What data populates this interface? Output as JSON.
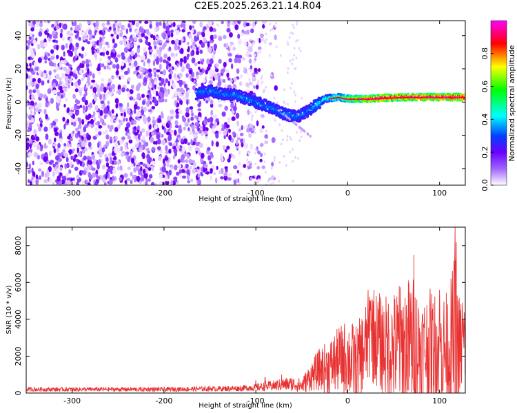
{
  "title": "C2E5.2025.263.21.14.R04",
  "chart_data": [
    {
      "type": "heatmap",
      "name": "spectrogram",
      "xlabel": "Height of straight line (km)",
      "ylabel": "Frequency (Hz)",
      "xlim": [
        -350,
        128
      ],
      "ylim": [
        -50,
        49
      ],
      "xticks": [
        -300,
        -200,
        -100,
        0,
        100
      ],
      "yticks": [
        -40,
        -20,
        0,
        20,
        40
      ],
      "xtick_labels": [
        "-300",
        "-200",
        "-100",
        "0",
        "100"
      ],
      "ytick_labels": [
        "-40",
        "-20",
        "0",
        "20",
        "40"
      ],
      "colorbar": {
        "label": "Normalized spectral amplitude",
        "range": [
          0,
          1
        ],
        "ticks": [
          0.0,
          0.2,
          0.4,
          0.6,
          0.8
        ],
        "tick_labels": [
          "0.0",
          "0.2",
          "0.4",
          "0.6",
          "0.8"
        ],
        "colormap": [
          "#ffffff",
          "#6a00ff",
          "#0040ff",
          "#00ffff",
          "#00ff00",
          "#ffff00",
          "#ff0000",
          "#ff00ff"
        ]
      },
      "signal_track": {
        "description": "frequency ridge vs height",
        "points": [
          [
            -165,
            5
          ],
          [
            -150,
            7
          ],
          [
            -140,
            5
          ],
          [
            -120,
            4
          ],
          [
            -100,
            0
          ],
          [
            -85,
            -3
          ],
          [
            -70,
            -7
          ],
          [
            -55,
            -9
          ],
          [
            -45,
            -6
          ],
          [
            -35,
            -2
          ],
          [
            -25,
            2
          ],
          [
            -10,
            3
          ],
          [
            0,
            2
          ],
          [
            20,
            2
          ],
          [
            60,
            3
          ],
          [
            100,
            3
          ],
          [
            128,
            3
          ]
        ]
      },
      "noise_extent": [
        -350,
        -100
      ]
    },
    {
      "type": "line",
      "name": "snr",
      "xlabel": "Height of straight line (km)",
      "ylabel": "SNR (10 * v/v)",
      "xlim": [
        -350,
        128
      ],
      "ylim": [
        0,
        9000
      ],
      "xticks": [
        -300,
        -200,
        -100,
        0,
        100
      ],
      "yticks": [
        0,
        2000,
        4000,
        6000,
        8000
      ],
      "xtick_labels": [
        "-300",
        "-200",
        "-100",
        "0",
        "100"
      ],
      "ytick_labels": [
        "0",
        "2000",
        "4000",
        "6000",
        "8000"
      ],
      "color": "#e83232",
      "envelope": {
        "x": [
          -350,
          -200,
          -120,
          -100,
          -80,
          -60,
          -50,
          -40,
          -30,
          -20,
          -10,
          0,
          10,
          20,
          25,
          30,
          40,
          50,
          60,
          70,
          80,
          90,
          100,
          110,
          115,
          118,
          120,
          125,
          128
        ],
        "base": [
          200,
          200,
          250,
          300,
          400,
          500,
          400,
          900,
          1300,
          1400,
          1800,
          1900,
          1500,
          2600,
          3500,
          3000,
          2500,
          2400,
          2500,
          2600,
          2300,
          2500,
          2400,
          2400,
          2600,
          3000,
          2200,
          2600,
          2800
        ],
        "amp": [
          120,
          120,
          150,
          200,
          300,
          400,
          400,
          800,
          1200,
          1500,
          1800,
          2200,
          2200,
          2400,
          3000,
          2600,
          2800,
          3200,
          3500,
          4000,
          3000,
          3200,
          3000,
          3200,
          4500,
          6000,
          3500,
          2500,
          2500
        ]
      },
      "peaks": [
        [
          -100,
          700
        ],
        [
          -90,
          850
        ],
        [
          -72,
          1000
        ],
        [
          25,
          5000
        ],
        [
          56,
          5800
        ],
        [
          72,
          7500
        ],
        [
          100,
          5600
        ],
        [
          117,
          9000
        ],
        [
          125,
          4900
        ]
      ]
    }
  ]
}
